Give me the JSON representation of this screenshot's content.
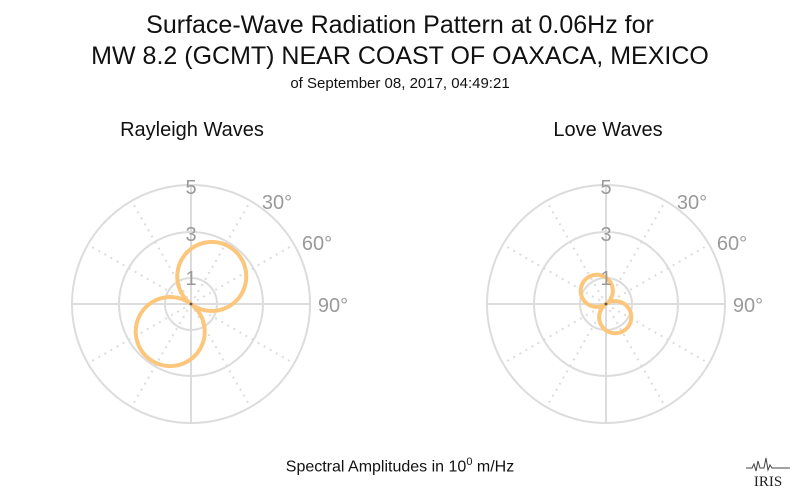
{
  "title": {
    "line1": "Surface-Wave Radiation Pattern at 0.06Hz for",
    "line2": "MW 8.2 (GCMT) NEAR COAST OF OAXACA, MEXICO",
    "line3": "of September 08, 2017, 04:49:21"
  },
  "footer": {
    "prefix": "Spectral Amplitudes in 10",
    "exponent": "0",
    "suffix": " m/Hz"
  },
  "logo_text": "IRIS",
  "colors": {
    "pattern": "#fcc67c",
    "grid": "#dcdcdc",
    "tick_label": "#9a9a9a"
  },
  "chart_data": [
    {
      "type": "polar",
      "title": "Rayleigh Waves",
      "radial_ticks": [
        "1",
        "3",
        "5"
      ],
      "rmax": 5,
      "angular_ticks": [
        "30°",
        "60°",
        "90°"
      ],
      "pattern": {
        "function": "|cos(theta - 37°)|",
        "max_amplitude": 2.9
      }
    },
    {
      "type": "polar",
      "title": "Love Waves",
      "radial_ticks": [
        "1",
        "3",
        "5"
      ],
      "rmax": 5,
      "angular_ticks": [
        "30°",
        "60°",
        "90°"
      ],
      "pattern": {
        "function": "|cos(theta - 145°)|",
        "max_amplitude": 1.35
      }
    }
  ]
}
